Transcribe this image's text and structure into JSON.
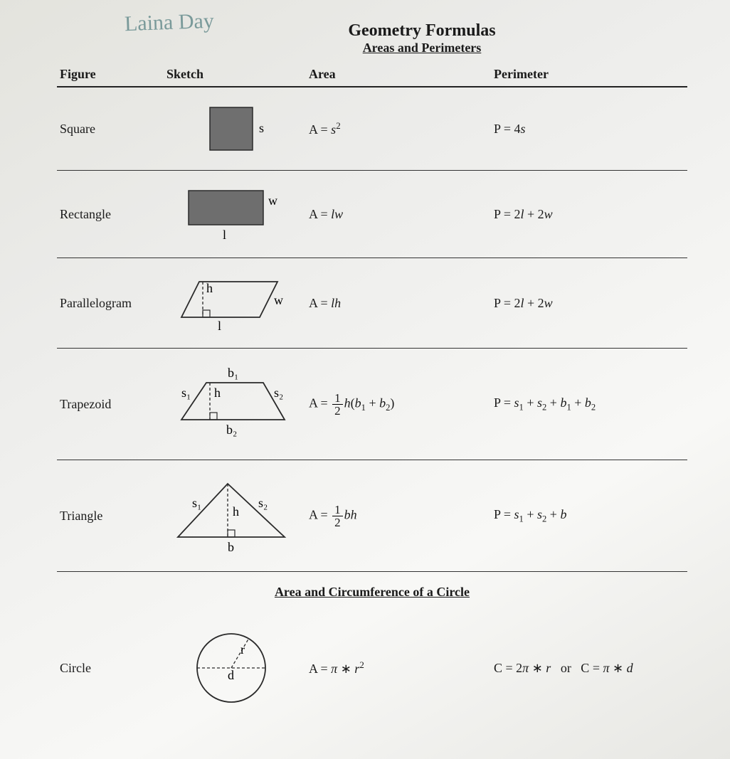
{
  "handwritten_name": "Laina Day",
  "title": "Geometry Formulas",
  "subtitle": "Areas and Perimeters",
  "columns": {
    "figure": "Figure",
    "sketch": "Sketch",
    "area": "Area",
    "perimeter": "Perimeter"
  },
  "circle_section_title": "Area and Circumference of a Circle",
  "rows": [
    {
      "name": "Square",
      "area_html": "A = <i>s</i><sup>2</sup>",
      "perimeter_html": "P = 4<i>s</i>",
      "sketch": {
        "type": "square",
        "fill": "#6f6f6f",
        "stroke": "#2a2a2a",
        "label_s": "s"
      }
    },
    {
      "name": "Rectangle",
      "area_html": "A = <i>lw</i>",
      "perimeter_html": "P = 2<i>l</i> + 2<i>w</i>",
      "sketch": {
        "type": "rectangle",
        "fill": "#6e6e6e",
        "stroke": "#2a2a2a",
        "label_l": "l",
        "label_w": "w"
      }
    },
    {
      "name": "Parallelogram",
      "area_html": "A = <i>lh</i>",
      "perimeter_html": "P = 2<i>l</i> + 2<i>w</i>",
      "sketch": {
        "type": "parallelogram",
        "stroke": "#2a2a2a",
        "label_l": "l",
        "label_w": "w",
        "label_h": "h"
      }
    },
    {
      "name": "Trapezoid",
      "area_html": "A = <span class='frac'><span class='num'>1</span><span class='den'>2</span></span><i>h</i>(<i>b</i><sub>1</sub> + <i>b</i><sub>2</sub>)",
      "perimeter_html": "P = <i>s</i><sub>1</sub> + <i>s</i><sub>2</sub> + <i>b</i><sub>1</sub> + <i>b</i><sub>2</sub>",
      "sketch": {
        "type": "trapezoid",
        "stroke": "#2a2a2a",
        "label_b1": "b₁",
        "label_b2": "b₂",
        "label_s1": "s₁",
        "label_s2": "s₂",
        "label_h": "h"
      }
    },
    {
      "name": "Triangle",
      "area_html": "A = <span class='frac'><span class='num'>1</span><span class='den'>2</span></span><i>bh</i>",
      "perimeter_html": "P = <i>s</i><sub>1</sub> + <i>s</i><sub>2</sub> + <i>b</i>",
      "sketch": {
        "type": "triangle",
        "stroke": "#2a2a2a",
        "label_b": "b",
        "label_s1": "s₁",
        "label_s2": "s₂",
        "label_h": "h"
      }
    },
    {
      "name": "Circle",
      "area_html": "A = <i>π</i> ∗ <i>r</i><sup>2</sup>",
      "perimeter_html": "C = 2<i>π</i> ∗ <i>r</i> &nbsp; or &nbsp; C = <i>π</i> ∗ <i>d</i>",
      "sketch": {
        "type": "circle",
        "stroke": "#2a2a2a",
        "label_r": "r",
        "label_d": "d"
      }
    }
  ],
  "style": {
    "text_color": "#1a1a1a",
    "rule_color": "#333333",
    "page_bg": "#ececea",
    "sketch_font": "italic 15px Times New Roman"
  }
}
